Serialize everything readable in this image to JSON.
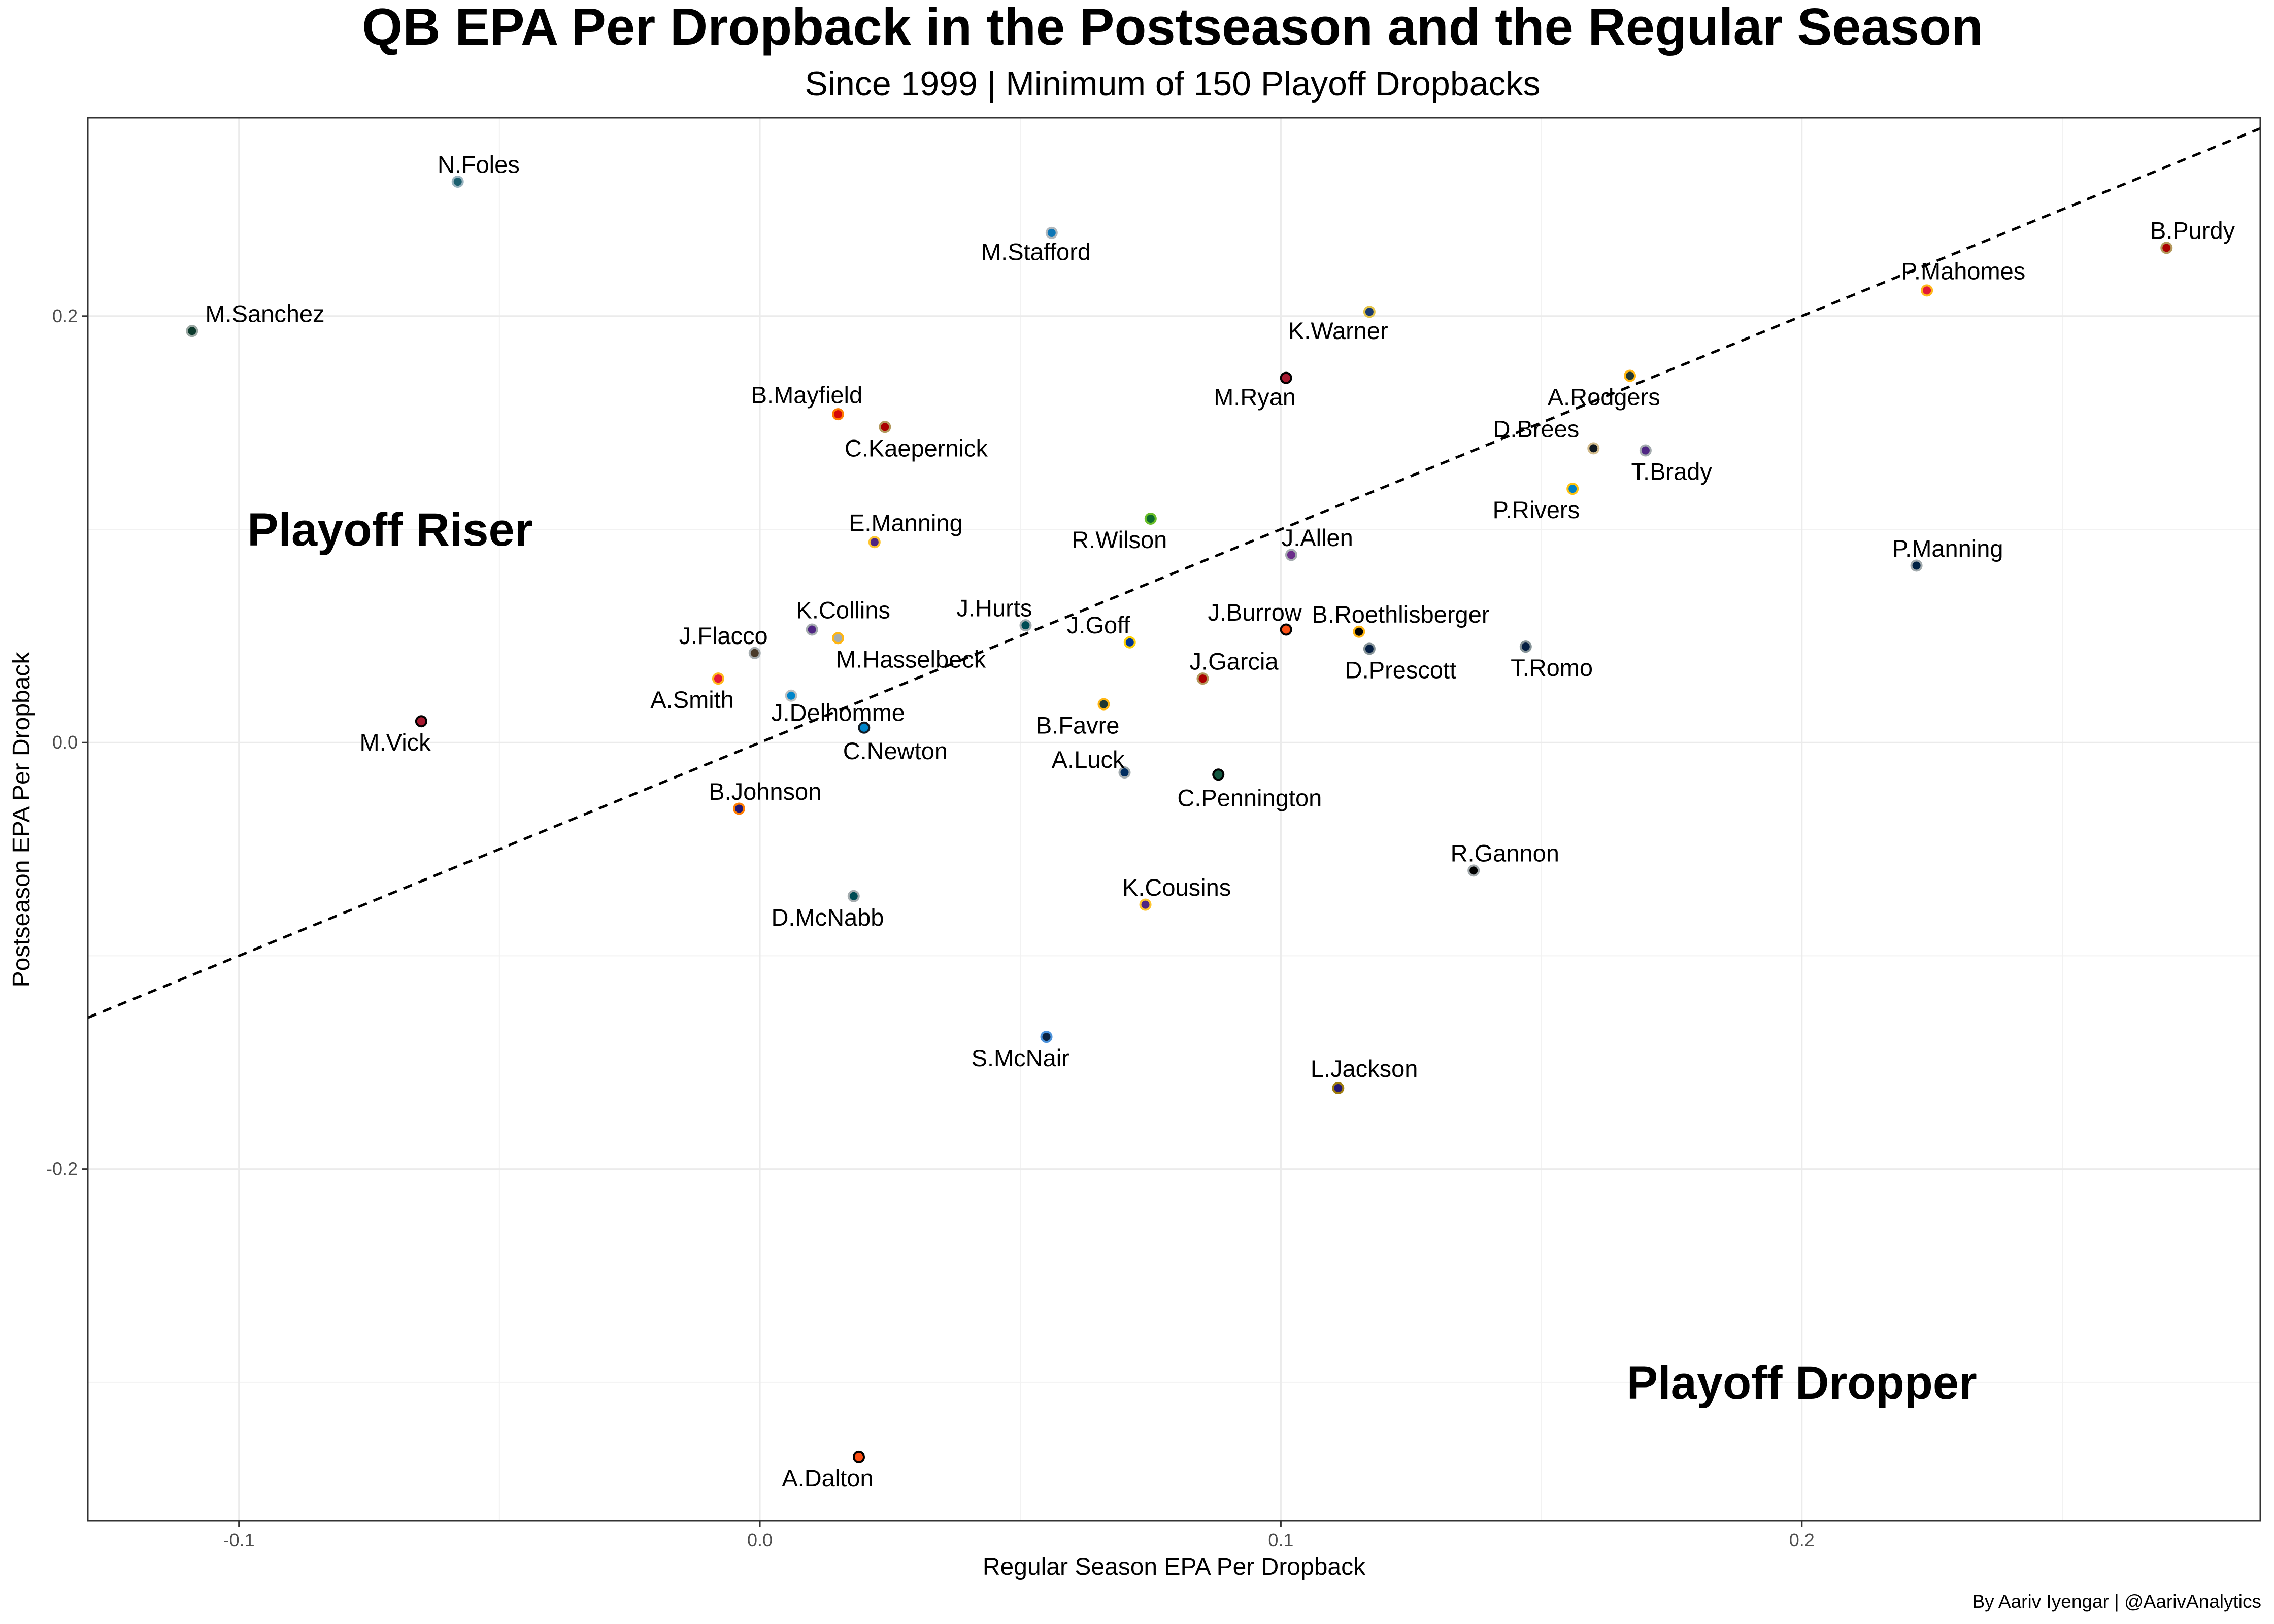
{
  "chart_data": {
    "type": "scatter",
    "title": "QB EPA Per Dropback in the Postseason and the Regular Season",
    "subtitle": "Since 1999 | Minimum of 150 Playoff Dropbacks",
    "xlabel": "Regular Season EPA Per Dropback",
    "ylabel": "Postseason EPA Per Dropback",
    "xlim": [
      -0.129,
      0.288
    ],
    "ylim": [
      -0.365,
      0.293
    ],
    "x_ticks": [
      -0.1,
      0.0,
      0.1,
      0.2
    ],
    "x_tick_labels": [
      "-0.1",
      "0.0",
      "0.1",
      "0.2"
    ],
    "y_ticks": [
      -0.2,
      0.0,
      0.2
    ],
    "y_tick_labels": [
      "-0.2",
      "0.0",
      "0.2"
    ],
    "grid": true,
    "reference_line": {
      "type": "y = x",
      "style": "dashed"
    },
    "annotations": [
      {
        "text": "Playoff Riser",
        "x": -0.071,
        "y": 0.1
      },
      {
        "text": "Playoff Dropper",
        "x": 0.2,
        "y": -0.3
      }
    ],
    "caption": "By Aariv Iyengar | @AarivAnalytics",
    "points": [
      {
        "name": "N.Foles",
        "x": -0.058,
        "y": 0.263,
        "fill": "#1b5f6e",
        "stroke": "#9ab4bf",
        "lx": -0.054,
        "ly": 0.271
      },
      {
        "name": "M.Sanchez",
        "x": -0.109,
        "y": 0.193,
        "fill": "#0c3a2c",
        "stroke": "#9aa7a2",
        "lx": -0.095,
        "ly": 0.201
      },
      {
        "name": "M.Stafford",
        "x": 0.056,
        "y": 0.239,
        "fill": "#0d76b6",
        "stroke": "#b0b7bc",
        "lx": 0.053,
        "ly": 0.23
      },
      {
        "name": "K.Warner",
        "x": 0.117,
        "y": 0.202,
        "fill": "#1a3a6e",
        "stroke": "#e3c44a",
        "lx": 0.111,
        "ly": 0.193
      },
      {
        "name": "M.Ryan",
        "x": 0.101,
        "y": 0.171,
        "fill": "#a71930",
        "stroke": "#000000",
        "lx": -0.0,
        "ly": 0.162
      },
      {
        "name": "B.Purdy",
        "x": 0.27,
        "y": 0.232,
        "fill": "#aa0000",
        "stroke": "#b3995d",
        "lx": 0.275,
        "ly": 0.24
      },
      {
        "name": "P.Mahomes",
        "x": 0.224,
        "y": 0.212,
        "fill": "#e31837",
        "stroke": "#ffb81c",
        "lx": 0.231,
        "ly": 0.221
      },
      {
        "name": "A.Rodgers",
        "x": 0.167,
        "y": 0.172,
        "fill": "#203731",
        "stroke": "#ffb612",
        "lx": 0.162,
        "ly": 0.162
      },
      {
        "name": "D.Brees",
        "x": 0.16,
        "y": 0.138,
        "fill": "#101820",
        "stroke": "#d3bc8d",
        "lx": 0.149,
        "ly": 0.147
      },
      {
        "name": "T.Brady",
        "x": 0.17,
        "y": 0.137,
        "fill": "#4f2683",
        "stroke": "#a5acaf",
        "lx": 0.175,
        "ly": 0.127
      },
      {
        "name": "P.Rivers",
        "x": 0.156,
        "y": 0.119,
        "fill": "#0080c6",
        "stroke": "#ffc20e",
        "lx": 0.149,
        "ly": 0.109
      },
      {
        "name": "B.Mayfield",
        "x": 0.015,
        "y": 0.154,
        "fill": "#d50a0a",
        "stroke": "#ff7c00",
        "lx": 0.009,
        "ly": 0.163
      },
      {
        "name": "C.Kaepernick",
        "x": 0.024,
        "y": 0.148,
        "fill": "#aa0000",
        "stroke": "#b3995d",
        "lx": 0.03,
        "ly": 0.138
      },
      {
        "name": "E.Manning",
        "x": 0.022,
        "y": 0.094,
        "fill": "#4f2683",
        "stroke": "#ffc62f",
        "lx": 0.028,
        "ly": 0.103
      },
      {
        "name": "R.Wilson",
        "x": 0.075,
        "y": 0.105,
        "fill": "#0d6b2e",
        "stroke": "#69be28",
        "lx": 0.069,
        "ly": 0.095
      },
      {
        "name": "J.Allen",
        "x": 0.102,
        "y": 0.088,
        "fill": "#6b2d8a",
        "stroke": "#a5acaf",
        "lx": 0.107,
        "ly": 0.096
      },
      {
        "name": "P.Manning",
        "x": 0.222,
        "y": 0.083,
        "fill": "#002244",
        "stroke": "#a2aaad",
        "lx": 0.228,
        "ly": 0.091
      },
      {
        "name": "K.Collins",
        "x": 0.01,
        "y": 0.053,
        "fill": "#4f2683",
        "stroke": "#a5acaf",
        "lx": 0.016,
        "ly": 0.062
      },
      {
        "name": "M.Hasselbeck",
        "x": 0.015,
        "y": 0.049,
        "fill": "#a5acaf",
        "stroke": "#ffb612",
        "lx": 0.029,
        "ly": 0.039
      },
      {
        "name": "J.Flacco",
        "x": -0.001,
        "y": 0.042,
        "fill": "#4a3b2a",
        "stroke": "#a5acaf",
        "lx": -0.007,
        "ly": 0.05
      },
      {
        "name": "J.Hurts",
        "x": 0.051,
        "y": 0.055,
        "fill": "#004c54",
        "stroke": "#a5acaf",
        "lx": 0.045,
        "ly": 0.063
      },
      {
        "name": "J.Goff",
        "x": 0.071,
        "y": 0.047,
        "fill": "#003594",
        "stroke": "#ffd100",
        "lx": 0.065,
        "ly": 0.055
      },
      {
        "name": "J.Burrow",
        "x": 0.101,
        "y": 0.053,
        "fill": "#fb4f14",
        "stroke": "#000000",
        "lx": 0.095,
        "ly": 0.061
      },
      {
        "name": "B.Roethlisberger",
        "x": 0.115,
        "y": 0.052,
        "fill": "#000000",
        "stroke": "#ffb612",
        "lx": 0.123,
        "ly": 0.06
      },
      {
        "name": "D.Prescott",
        "x": 0.117,
        "y": 0.044,
        "fill": "#041e42",
        "stroke": "#869397",
        "lx": 0.123,
        "ly": 0.034
      },
      {
        "name": "T.Romo",
        "x": 0.147,
        "y": 0.045,
        "fill": "#041e42",
        "stroke": "#869397",
        "lx": 0.152,
        "ly": 0.035
      },
      {
        "name": "J.Garcia",
        "x": 0.085,
        "y": 0.03,
        "fill": "#aa0000",
        "stroke": "#b3995d",
        "lx": 0.091,
        "ly": 0.038
      },
      {
        "name": "A.Smith",
        "x": -0.008,
        "y": 0.03,
        "fill": "#e31837",
        "stroke": "#ffb81c",
        "lx": -0.013,
        "ly": 0.02
      },
      {
        "name": "J.Delhomme",
        "x": 0.006,
        "y": 0.022,
        "fill": "#0085ca",
        "stroke": "#bfc0bf",
        "lx": 0.015,
        "ly": 0.014
      },
      {
        "name": "C.Newton",
        "x": 0.02,
        "y": 0.007,
        "fill": "#0085ca",
        "stroke": "#101820",
        "lx": 0.026,
        "ly": -0.004
      },
      {
        "name": "B.Favre",
        "x": 0.066,
        "y": 0.018,
        "fill": "#203731",
        "stroke": "#ffb612",
        "lx": 0.061,
        "ly": 0.008
      },
      {
        "name": "M.Vick",
        "x": -0.065,
        "y": 0.01,
        "fill": "#a71930",
        "stroke": "#000000",
        "lx": -0.07,
        "ly": 0.0
      },
      {
        "name": "A.Luck",
        "x": 0.07,
        "y": -0.014,
        "fill": "#002c5f",
        "stroke": "#a2aaad",
        "lx": 0.063,
        "ly": -0.008
      },
      {
        "name": "C.Pennington",
        "x": 0.088,
        "y": -0.015,
        "fill": "#125740",
        "stroke": "#000000",
        "lx": 0.094,
        "ly": -0.026
      },
      {
        "name": "B.Johnson",
        "x": -0.004,
        "y": -0.031,
        "fill": "#241773",
        "stroke": "#ff7c00",
        "lx": 0.001,
        "ly": -0.023
      },
      {
        "name": "D.McNabb",
        "x": 0.018,
        "y": -0.072,
        "fill": "#004c54",
        "stroke": "#a5acaf",
        "lx": 0.013,
        "ly": -0.082
      },
      {
        "name": "K.Cousins",
        "x": 0.074,
        "y": -0.076,
        "fill": "#4f2683",
        "stroke": "#ffc62f",
        "lx": 0.08,
        "ly": -0.068
      },
      {
        "name": "R.Gannon",
        "x": 0.137,
        "y": -0.06,
        "fill": "#000000",
        "stroke": "#a5acaf",
        "lx": 0.143,
        "ly": -0.052
      },
      {
        "name": "S.McNair",
        "x": 0.055,
        "y": -0.138,
        "fill": "#0c2340",
        "stroke": "#4b92db",
        "lx": 0.05,
        "ly": -0.148
      },
      {
        "name": "L.Jackson",
        "x": 0.111,
        "y": -0.162,
        "fill": "#241773",
        "stroke": "#9e7c0c",
        "lx": 0.116,
        "ly": -0.153
      },
      {
        "name": "A.Dalton",
        "x": 0.019,
        "y": -0.335,
        "fill": "#fb4f14",
        "stroke": "#000000",
        "lx": 0.013,
        "ly": -0.345
      }
    ]
  }
}
